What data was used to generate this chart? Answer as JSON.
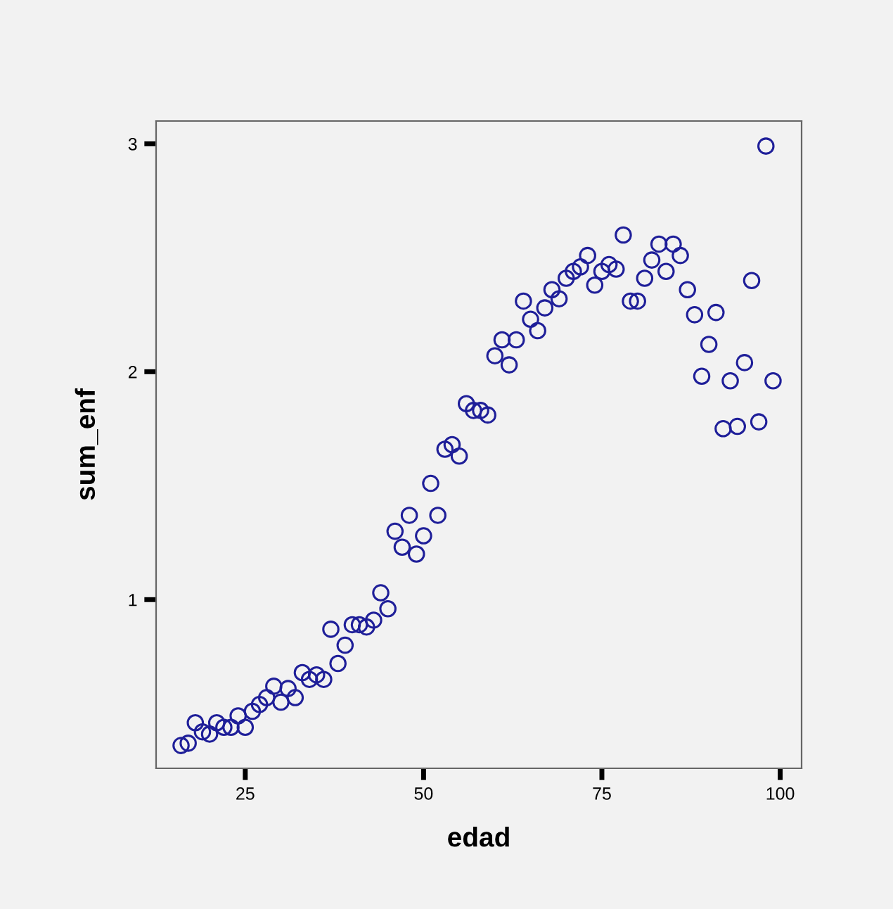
{
  "chart_data": {
    "type": "scatter",
    "xlabel": "edad",
    "ylabel": "sum_enf",
    "xlim": [
      12.5,
      103
    ],
    "ylim": [
      0.26,
      3.1
    ],
    "xticks": [
      25,
      50,
      75,
      100
    ],
    "yticks": [
      1,
      2,
      3
    ],
    "grid": false,
    "marker": "circle",
    "x": [
      16,
      17,
      18,
      19,
      20,
      21,
      22,
      23,
      24,
      25,
      26,
      27,
      28,
      29,
      30,
      31,
      32,
      33,
      34,
      35,
      36,
      37,
      38,
      39,
      40,
      41,
      42,
      43,
      44,
      45,
      46,
      47,
      48,
      49,
      50,
      51,
      52,
      53,
      54,
      55,
      56,
      57,
      58,
      59,
      60,
      61,
      62,
      63,
      64,
      65,
      66,
      67,
      68,
      69,
      70,
      71,
      72,
      73,
      74,
      75,
      76,
      77,
      78,
      79,
      80,
      81,
      82,
      83,
      84,
      85,
      86,
      87,
      88,
      89,
      90,
      91,
      92,
      93,
      94,
      95,
      96,
      97,
      98,
      99
    ],
    "series": [
      {
        "color": "#1f1f99",
        "values": [
          0.36,
          0.37,
          0.46,
          0.42,
          0.41,
          0.46,
          0.44,
          0.44,
          0.49,
          0.44,
          0.51,
          0.54,
          0.57,
          0.62,
          0.55,
          0.61,
          0.57,
          0.68,
          0.65,
          0.67,
          0.65,
          0.87,
          0.72,
          0.8,
          0.89,
          0.89,
          0.88,
          0.91,
          1.03,
          0.96,
          1.3,
          1.23,
          1.37,
          1.2,
          1.28,
          1.51,
          1.37,
          1.66,
          1.68,
          1.63,
          1.86,
          1.83,
          1.83,
          1.81,
          2.07,
          2.14,
          2.03,
          2.14,
          2.31,
          2.23,
          2.18,
          2.28,
          2.36,
          2.32,
          2.41,
          2.44,
          2.46,
          2.51,
          2.38,
          2.44,
          2.47,
          2.45,
          2.6,
          2.31,
          2.31,
          2.41,
          2.49,
          2.56,
          2.44,
          2.56,
          2.51,
          2.36,
          2.25,
          1.98,
          2.12,
          2.26,
          1.75,
          1.96,
          1.76,
          2.04,
          2.4,
          1.78,
          2.99,
          1.96
        ]
      }
    ]
  }
}
